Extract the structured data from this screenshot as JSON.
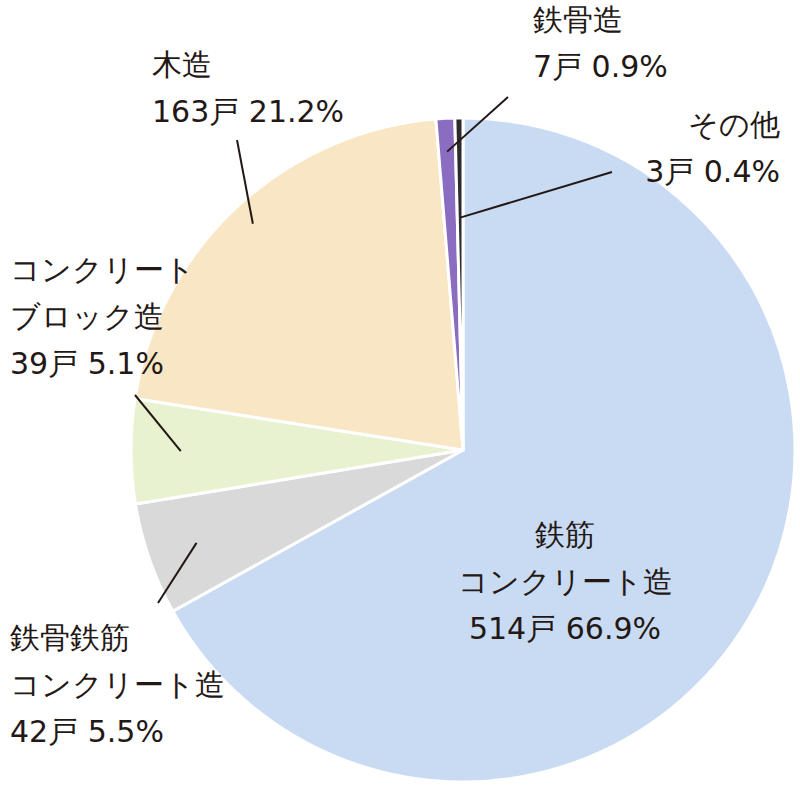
{
  "chart_data": {
    "type": "pie",
    "categories": [
      "鉄筋\nコンクリート造",
      "鉄骨鉄筋\nコンクリート造",
      "コンクリート\nブロック造",
      "木造",
      "鉄骨造",
      "その他"
    ],
    "values": [
      514,
      42,
      39,
      163,
      7,
      3
    ],
    "value_labels": [
      "514戸 66.9%",
      "42戸 5.5%",
      "39戸 5.1%",
      "163戸 21.2%",
      "7戸 0.9%",
      "3戸 0.4%"
    ],
    "colors": [
      "#c9dbf2",
      "#d9d9d9",
      "#e9f2d0",
      "#f9e6c4",
      "#8a6cc0",
      "#2b2b2b"
    ],
    "data_labels": true
  }
}
